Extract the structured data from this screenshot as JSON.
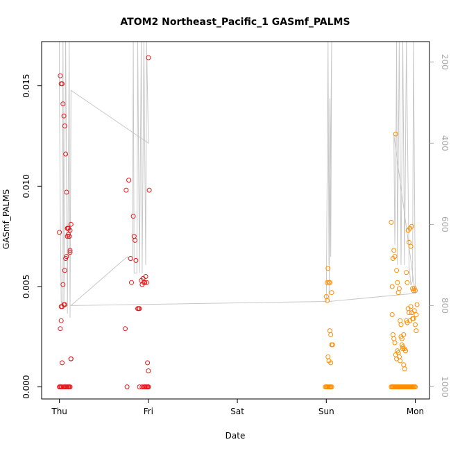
{
  "chart_data": {
    "type": "scatter",
    "title": "ATOM2 Northeast_Pacific_1 GASmf_PALMS",
    "xlabel": "Date",
    "ylabel": "GASmf_PALMS",
    "x_ticks": [
      {
        "value": 0,
        "label": "Thu"
      },
      {
        "value": 1,
        "label": "Fri"
      },
      {
        "value": 2,
        "label": "Sat"
      },
      {
        "value": 3,
        "label": "Sun"
      },
      {
        "value": 4,
        "label": "Mon"
      }
    ],
    "y_ticks": [
      0.0,
      0.005,
      0.01,
      0.015
    ],
    "y_tick_labels": [
      "0.000",
      "0.005",
      "0.010",
      "0.015"
    ],
    "xlim": [
      -0.2,
      4.16
    ],
    "ylim": [
      -0.0006,
      0.0172
    ],
    "right_axis": {
      "ticks": [
        200,
        400,
        600,
        800,
        1000
      ],
      "tick_labels": [
        "200",
        "400",
        "600",
        "800",
        "1000"
      ],
      "range": [
        150,
        1030
      ],
      "color": "#aaaaaa"
    },
    "series": [
      {
        "color": "#e41a1c",
        "x": [
          0.0,
          0.01,
          0.02,
          0.03,
          0.05,
          0.06,
          0.07,
          0.08,
          0.09,
          0.1,
          0.11,
          0.12,
          0.01,
          0.02,
          0.03,
          0.04,
          0.06,
          0.07,
          0.08,
          0.09,
          0.1,
          0.12,
          0.13,
          0.0,
          0.01,
          0.02,
          0.03,
          0.04,
          0.05,
          0.06,
          0.07,
          0.08,
          0.09,
          0.1,
          0.11,
          0.12,
          0.13,
          0.02,
          0.03,
          0.05,
          0.06,
          0.09,
          0.1,
          0.11,
          0.12,
          0.13,
          0.74,
          0.75,
          0.78,
          0.8,
          0.81,
          0.83,
          0.84,
          0.85,
          0.86,
          0.88,
          0.89,
          0.9,
          0.92,
          0.93,
          0.94,
          0.95,
          0.96,
          0.97,
          0.98,
          0.99,
          1.0,
          1.0,
          1.01,
          0.76,
          0.9,
          0.93,
          0.95,
          0.96,
          0.97,
          0.98,
          0.99,
          1.0,
          1.0
        ],
        "y": [
          0.0,
          0.0,
          0.0,
          0.0,
          0.0,
          0.0,
          0.0,
          0.0,
          0.0,
          0.0,
          0.0,
          0.0,
          0.0029,
          0.0033,
          0.0012,
          0.0051,
          0.0058,
          0.0064,
          0.0065,
          0.0075,
          0.0076,
          0.0078,
          0.0081,
          0.0077,
          0.0155,
          0.0151,
          0.0151,
          0.0141,
          0.0135,
          0.013,
          0.0116,
          0.0097,
          0.0079,
          0.0079,
          0.0075,
          0.0067,
          0.0014,
          0.004,
          0.004,
          0.0041,
          0.0041,
          0.0079,
          0.0079,
          0.0075,
          0.0068,
          0.0014,
          0.0029,
          0.0098,
          0.0103,
          0.0064,
          0.0052,
          0.0085,
          0.0075,
          0.0073,
          0.0063,
          0.0039,
          0.0039,
          0.0039,
          0.0053,
          0.0051,
          0.0054,
          0.0052,
          0.0052,
          0.0055,
          0.0052,
          0.0012,
          0.0008,
          0.0164,
          0.0098,
          0.0,
          0.0,
          0.0,
          0.0,
          0.0,
          0.0,
          0.0,
          0.0,
          0.0,
          0.0
        ]
      },
      {
        "color": "#ff8c00",
        "x": [
          2.99,
          3.0,
          3.01,
          3.02,
          3.03,
          3.04,
          3.05,
          3.06,
          3.0,
          3.01,
          3.02,
          3.03,
          3.04,
          3.05,
          3.06,
          3.01,
          3.02,
          3.03,
          3.04,
          3.05,
          3.06,
          3.07,
          3.73,
          3.74,
          3.75,
          3.76,
          3.77,
          3.78,
          3.79,
          3.8,
          3.81,
          3.82,
          3.83,
          3.84,
          3.85,
          3.86,
          3.87,
          3.88,
          3.89,
          3.9,
          3.91,
          3.92,
          3.93,
          3.94,
          3.95,
          3.96,
          3.97,
          3.98,
          3.99,
          4.0,
          4.01,
          4.02,
          3.74,
          3.75,
          3.76,
          3.77,
          3.78,
          3.79,
          3.8,
          3.81,
          3.82,
          3.83,
          3.84,
          3.85,
          3.86,
          3.87,
          3.88,
          3.89,
          3.9,
          3.91,
          3.92,
          3.93,
          3.94,
          3.95,
          3.96,
          3.97,
          3.98,
          3.99,
          4.0,
          4.01,
          3.73,
          3.74,
          3.75,
          3.76,
          3.77,
          3.78,
          3.79,
          3.8,
          3.81,
          3.82,
          3.83,
          3.84,
          3.85,
          3.86,
          3.87,
          3.88,
          3.89,
          3.9,
          3.91,
          3.92,
          3.93,
          3.94,
          3.95,
          3.96,
          3.97,
          3.98,
          3.99,
          4.0
        ],
        "y": [
          0.0,
          0.0,
          0.0,
          0.0,
          0.0,
          0.0,
          0.0,
          0.0,
          0.0045,
          0.0052,
          0.0059,
          0.0052,
          0.0028,
          0.0026,
          0.0021,
          0.0043,
          0.0015,
          0.0013,
          0.0052,
          0.0012,
          0.0047,
          0.0021,
          0.0082,
          0.005,
          0.0064,
          0.0068,
          0.0065,
          0.0126,
          0.0058,
          0.0052,
          0.0047,
          0.0049,
          0.0033,
          0.0031,
          0.0021,
          0.002,
          0.0026,
          0.0019,
          0.0018,
          0.0057,
          0.0052,
          0.0078,
          0.0072,
          0.0079,
          0.007,
          0.008,
          0.0049,
          0.0048,
          0.0049,
          0.0048,
          0.0036,
          0.0041,
          0.0036,
          0.0026,
          0.0024,
          0.0022,
          0.0016,
          0.0014,
          0.0018,
          0.0017,
          0.0015,
          0.0013,
          0.0025,
          0.0024,
          0.0019,
          0.0011,
          0.0009,
          0.0018,
          0.0033,
          0.0032,
          0.0039,
          0.0037,
          0.0033,
          0.004,
          0.0037,
          0.0034,
          0.0034,
          0.0038,
          0.0031,
          0.0028,
          0.0,
          0.0,
          0.0,
          0.0,
          0.0,
          0.0,
          0.0,
          0.0,
          0.0,
          0.0,
          0.0,
          0.0,
          0.0,
          0.0,
          0.0,
          0.0,
          0.0,
          0.0,
          0.0,
          0.0,
          0.0,
          0.0,
          0.0,
          0.0,
          0.0,
          0.0,
          0.0,
          0.0
        ]
      }
    ],
    "altitude_trace": {
      "color": "#c8c8c8",
      "points": [
        [
          0.0,
          150
        ],
        [
          0.0,
          270
        ],
        [
          0.01,
          580
        ],
        [
          0.02,
          790
        ],
        [
          0.03,
          800
        ],
        [
          0.04,
          150
        ],
        [
          0.05,
          810
        ],
        [
          0.07,
          150
        ],
        [
          0.09,
          820
        ],
        [
          0.11,
          150
        ],
        [
          0.12,
          830
        ],
        [
          0.13,
          270
        ],
        [
          1.0,
          400
        ],
        [
          0.98,
          150
        ],
        [
          0.97,
          700
        ],
        [
          0.95,
          150
        ],
        [
          0.93,
          720
        ],
        [
          0.92,
          150
        ],
        [
          0.9,
          720
        ],
        [
          0.88,
          150
        ],
        [
          0.87,
          720
        ],
        [
          0.84,
          720
        ],
        [
          0.83,
          150
        ],
        [
          0.82,
          690
        ],
        [
          0.79,
          690
        ],
        [
          0.76,
          680
        ],
        [
          0.13,
          800
        ],
        [
          3.0,
          790
        ],
        [
          3.02,
          150
        ],
        [
          3.03,
          700
        ],
        [
          3.04,
          290
        ],
        [
          3.05,
          680
        ],
        [
          3.06,
          150
        ],
        [
          3.03,
          790
        ],
        [
          4.0,
          770
        ],
        [
          3.76,
          380
        ],
        [
          3.77,
          650
        ],
        [
          3.78,
          520
        ],
        [
          3.79,
          150
        ],
        [
          3.8,
          700
        ],
        [
          3.82,
          150
        ],
        [
          3.84,
          700
        ],
        [
          3.86,
          150
        ],
        [
          3.88,
          700
        ],
        [
          3.9,
          150
        ],
        [
          3.93,
          700
        ],
        [
          3.95,
          750
        ],
        [
          3.97,
          740
        ],
        [
          3.98,
          150
        ],
        [
          4.0,
          770
        ]
      ]
    }
  }
}
